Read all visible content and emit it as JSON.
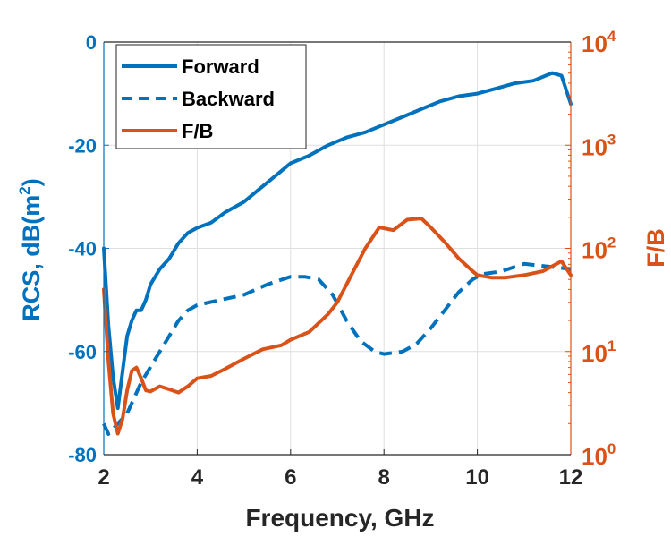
{
  "chart_data": {
    "type": "line",
    "xlabel": "Frequency, GHz",
    "ylabel": "RCS, dB(m",
    "ylabel_sup": "2",
    "ylabel_close": ")",
    "y2label": "F/B",
    "xlim": [
      2,
      12
    ],
    "ylim": [
      -80,
      0
    ],
    "y2lim_log10": [
      0,
      4
    ],
    "x_ticks": [
      "2",
      "4",
      "6",
      "8",
      "10",
      "12"
    ],
    "y_ticks": [
      "0",
      "-20",
      "-40",
      "-60",
      "-80"
    ],
    "y2_ticks": [
      {
        "base": "10",
        "exp": "4"
      },
      {
        "base": "10",
        "exp": "3"
      },
      {
        "base": "10",
        "exp": "2"
      },
      {
        "base": "10",
        "exp": "1"
      },
      {
        "base": "10",
        "exp": "0"
      }
    ],
    "grid": true,
    "legend_position": "top-left",
    "colors": {
      "blue": "#0072BD",
      "orange": "#D95319"
    },
    "series": [
      {
        "name": "Forward",
        "axis": "left",
        "style": "solid",
        "x": [
          2.0,
          2.1,
          2.2,
          2.3,
          2.4,
          2.5,
          2.6,
          2.7,
          2.8,
          2.9,
          3.0,
          3.2,
          3.4,
          3.6,
          3.8,
          4.0,
          4.3,
          4.6,
          5.0,
          5.4,
          5.8,
          6.0,
          6.4,
          6.8,
          7.2,
          7.6,
          8.0,
          8.4,
          8.8,
          9.2,
          9.6,
          10.0,
          10.4,
          10.8,
          11.2,
          11.6,
          11.8,
          12.0
        ],
        "y": [
          -40,
          -55,
          -65,
          -71,
          -64,
          -57,
          -54,
          -52,
          -52,
          -50,
          -47,
          -44,
          -42,
          -39,
          -37,
          -36,
          -35,
          -33,
          -31,
          -28,
          -25,
          -23.5,
          -22,
          -20,
          -18.5,
          -17.5,
          -16,
          -14.5,
          -13,
          -11.5,
          -10.5,
          -10,
          -9,
          -8,
          -7.5,
          -6,
          -6.5,
          -12
        ]
      },
      {
        "name": "Backward",
        "axis": "left",
        "style": "dashed",
        "x": [
          2.0,
          2.1,
          2.2,
          2.3,
          2.4,
          2.5,
          2.6,
          2.8,
          3.0,
          3.2,
          3.4,
          3.6,
          3.8,
          4.0,
          4.5,
          5.0,
          5.5,
          6.0,
          6.3,
          6.6,
          6.9,
          7.2,
          7.5,
          7.8,
          8.0,
          8.4,
          8.7,
          9.0,
          9.3,
          9.6,
          9.9,
          10.1,
          10.5,
          11.0,
          11.5,
          12.0
        ],
        "y": [
          -74,
          -76,
          -75,
          -74,
          -73,
          -72,
          -70,
          -66,
          -63,
          -60,
          -57,
          -54,
          -52,
          -51,
          -50,
          -49,
          -47,
          -45.5,
          -45.5,
          -46,
          -49,
          -54,
          -58,
          -60,
          -60.5,
          -60,
          -58.5,
          -55.5,
          -52,
          -48.5,
          -46,
          -45,
          -44.5,
          -43,
          -43.5,
          -44
        ]
      },
      {
        "name": "F/B",
        "axis": "right",
        "style": "solid",
        "x": [
          2.0,
          2.1,
          2.2,
          2.3,
          2.4,
          2.5,
          2.6,
          2.7,
          2.8,
          2.9,
          3.0,
          3.2,
          3.4,
          3.6,
          3.8,
          4.0,
          4.3,
          4.6,
          5.0,
          5.4,
          5.8,
          6.0,
          6.4,
          6.8,
          7.0,
          7.3,
          7.6,
          7.9,
          8.2,
          8.5,
          8.8,
          9.0,
          9.3,
          9.6,
          9.9,
          10.0,
          10.3,
          10.6,
          11.0,
          11.4,
          11.8,
          12.0
        ],
        "y": [
          40,
          8,
          2.5,
          1.6,
          2.2,
          4.2,
          6.5,
          7,
          5.5,
          4.2,
          4.1,
          4.6,
          4.3,
          4.0,
          4.6,
          5.5,
          5.8,
          6.8,
          8.5,
          10.5,
          11.5,
          13,
          15.5,
          23,
          30,
          55,
          100,
          160,
          150,
          190,
          195,
          160,
          115,
          80,
          60,
          55,
          52,
          52,
          55,
          60,
          75,
          55
        ]
      }
    ]
  }
}
